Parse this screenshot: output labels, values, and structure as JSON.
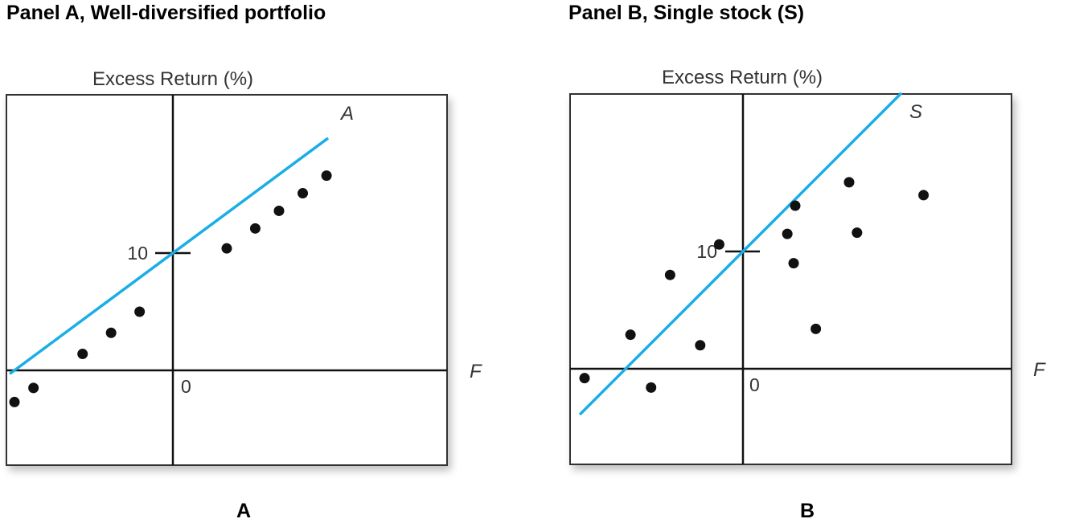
{
  "panel_a": {
    "title": "Panel A, Well-diversified portfolio",
    "caption": "A"
  },
  "panel_b": {
    "title": "Panel B, Single stock (S)",
    "caption": "B"
  },
  "colors": {
    "line": "#1aaee6",
    "points": "#111111",
    "axes": "#111111",
    "frame": "#333333"
  },
  "chart_data": [
    {
      "type": "scatter",
      "title": "Panel A, Well-diversified portfolio",
      "ylabel": "Excess Return (%)",
      "xlabel": "F",
      "tick_labels": {
        "y": "10",
        "origin": "0"
      },
      "line_label": "A",
      "xlim": [
        -10.5,
        17
      ],
      "ylim": [
        -6,
        17.5
      ],
      "points": [
        {
          "x": -10,
          "y": -2.7
        },
        {
          "x": -8.8,
          "y": -1.5
        },
        {
          "x": -5.7,
          "y": 1.4
        },
        {
          "x": -3.9,
          "y": 3.2
        },
        {
          "x": -2.1,
          "y": 5.0
        },
        {
          "x": 3.4,
          "y": 10.4
        },
        {
          "x": 5.2,
          "y": 12.1
        },
        {
          "x": 6.7,
          "y": 13.6
        },
        {
          "x": 8.2,
          "y": 15.1
        },
        {
          "x": 9.7,
          "y": 16.6
        }
      ],
      "fit_line": {
        "intercept": 10,
        "slope": 1,
        "x_range": [
          -10.3,
          9.8
        ]
      }
    },
    {
      "type": "scatter",
      "title": "Panel B, Single stock (S)",
      "ylabel": "Excess Return (%)",
      "xlabel": "F",
      "tick_labels": {
        "y": "10",
        "origin": "0"
      },
      "line_label": "S",
      "xlim": [
        -10.5,
        17
      ],
      "ylim": [
        -6,
        17.5
      ],
      "points": [
        {
          "x": -10,
          "y": -0.8
        },
        {
          "x": -7.1,
          "y": 2.9
        },
        {
          "x": -4.6,
          "y": 8.0
        },
        {
          "x": -5.8,
          "y": -1.6
        },
        {
          "x": -2.7,
          "y": 2.0
        },
        {
          "x": -1.5,
          "y": 10.6
        },
        {
          "x": 2.8,
          "y": 11.5
        },
        {
          "x": 3.2,
          "y": 9.0
        },
        {
          "x": 3.3,
          "y": 13.9
        },
        {
          "x": 4.6,
          "y": 3.4
        },
        {
          "x": 6.7,
          "y": 15.9
        },
        {
          "x": 7.2,
          "y": 11.6
        },
        {
          "x": 11.4,
          "y": 14.8
        }
      ],
      "fit_line": {
        "intercept": 10,
        "slope": 1.35,
        "x_range": [
          -10.3,
          10
        ]
      }
    }
  ]
}
